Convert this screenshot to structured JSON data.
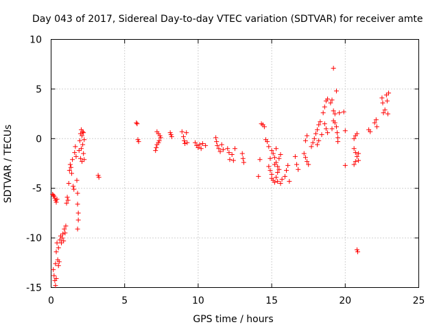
{
  "chart_data": {
    "type": "scatter",
    "title": "Day 043 of 2017, Sidereal Day-to-day VTEC variation (SDTVAR) for receiver amte",
    "xlabel": "GPS time / hours",
    "ylabel": "SDTVAR / TECUs",
    "xlim": [
      0,
      25
    ],
    "ylim": [
      -15,
      10
    ],
    "xticks": [
      0,
      5,
      10,
      15,
      20,
      25
    ],
    "yticks": [
      -15,
      -10,
      -5,
      0,
      5,
      10
    ],
    "xtick_labels": [
      "0",
      "5",
      "10",
      "15",
      "20",
      "25"
    ],
    "ytick_labels": [
      "-15",
      "-10",
      "-5",
      "0",
      "5",
      "10"
    ],
    "grid": true,
    "marker": "+",
    "color": "#ff0000",
    "series": [
      {
        "name": "SDTVAR",
        "points": [
          [
            0.1,
            -5.6
          ],
          [
            0.15,
            -5.7
          ],
          [
            0.2,
            -5.8
          ],
          [
            0.25,
            -6.0
          ],
          [
            0.3,
            -6.2
          ],
          [
            0.35,
            -6.4
          ],
          [
            0.4,
            -6.1
          ],
          [
            0.15,
            -13.2
          ],
          [
            0.2,
            -13.8
          ],
          [
            0.25,
            -14.3
          ],
          [
            0.3,
            -14.8
          ],
          [
            0.35,
            -14.1
          ],
          [
            0.3,
            -12.6
          ],
          [
            0.35,
            -11.4
          ],
          [
            0.4,
            -10.5
          ],
          [
            0.45,
            -12.2
          ],
          [
            0.5,
            -12.8
          ],
          [
            0.55,
            -12.4
          ],
          [
            0.5,
            -11.0
          ],
          [
            0.6,
            -10.2
          ],
          [
            0.65,
            -9.8
          ],
          [
            0.7,
            -10.5
          ],
          [
            0.75,
            -10.0
          ],
          [
            0.8,
            -9.6
          ],
          [
            0.85,
            -10.3
          ],
          [
            0.9,
            -9.1
          ],
          [
            0.95,
            -9.5
          ],
          [
            1.0,
            -8.8
          ],
          [
            1.05,
            -6.5
          ],
          [
            1.1,
            -5.9
          ],
          [
            1.15,
            -6.2
          ],
          [
            1.2,
            -4.5
          ],
          [
            1.25,
            -3.2
          ],
          [
            1.3,
            -2.6
          ],
          [
            1.35,
            -2.9
          ],
          [
            1.4,
            -3.5
          ],
          [
            1.45,
            -2.1
          ],
          [
            1.5,
            -4.8
          ],
          [
            1.55,
            -5.1
          ],
          [
            1.6,
            -1.4
          ],
          [
            1.65,
            -0.8
          ],
          [
            1.7,
            -1.8
          ],
          [
            1.75,
            -4.2
          ],
          [
            1.8,
            -5.5
          ],
          [
            1.8,
            -6.6
          ],
          [
            1.85,
            -7.5
          ],
          [
            1.85,
            -8.2
          ],
          [
            1.8,
            -9.1
          ],
          [
            1.9,
            -1.2
          ],
          [
            1.95,
            -0.2
          ],
          [
            2.0,
            0.5
          ],
          [
            2.05,
            0.9
          ],
          [
            2.1,
            0.3
          ],
          [
            2.15,
            -0.6
          ],
          [
            2.2,
            -1.5
          ],
          [
            2.1,
            -2.3
          ],
          [
            2.0,
            -2.0
          ],
          [
            2.2,
            0.6
          ],
          [
            2.25,
            -0.1
          ],
          [
            2.15,
            0.7
          ],
          [
            2.05,
            -1.0
          ],
          [
            2.25,
            -2.1
          ],
          [
            3.2,
            -3.7
          ],
          [
            3.25,
            -3.9
          ],
          [
            5.8,
            1.6
          ],
          [
            5.85,
            1.5
          ],
          [
            5.9,
            -0.1
          ],
          [
            5.95,
            -0.3
          ],
          [
            7.1,
            -1.2
          ],
          [
            7.15,
            -0.9
          ],
          [
            7.2,
            -0.6
          ],
          [
            7.3,
            -0.4
          ],
          [
            7.35,
            -0.2
          ],
          [
            7.2,
            0.7
          ],
          [
            7.3,
            0.5
          ],
          [
            7.4,
            0.3
          ],
          [
            7.45,
            0.1
          ],
          [
            8.1,
            0.6
          ],
          [
            8.15,
            0.4
          ],
          [
            8.2,
            0.2
          ],
          [
            8.9,
            0.7
          ],
          [
            9.0,
            0.2
          ],
          [
            9.05,
            -0.2
          ],
          [
            9.1,
            -0.5
          ],
          [
            9.2,
            0.6
          ],
          [
            9.25,
            -0.4
          ],
          [
            9.8,
            -0.4
          ],
          [
            9.9,
            -0.7
          ],
          [
            10.0,
            -0.9
          ],
          [
            10.1,
            -0.6
          ],
          [
            10.2,
            -1.0
          ],
          [
            10.3,
            -0.5
          ],
          [
            10.5,
            -0.7
          ],
          [
            11.2,
            0.1
          ],
          [
            11.25,
            -0.3
          ],
          [
            11.3,
            -0.7
          ],
          [
            11.4,
            -1.0
          ],
          [
            11.5,
            -1.3
          ],
          [
            11.6,
            -0.6
          ],
          [
            11.7,
            -1.1
          ],
          [
            12.0,
            -1.0
          ],
          [
            12.1,
            -1.4
          ],
          [
            12.15,
            -2.1
          ],
          [
            12.3,
            -1.6
          ],
          [
            12.4,
            -2.2
          ],
          [
            12.5,
            -1.0
          ],
          [
            13.0,
            -1.5
          ],
          [
            13.05,
            -2.0
          ],
          [
            13.1,
            -2.4
          ],
          [
            14.1,
            -3.8
          ],
          [
            14.2,
            -2.1
          ],
          [
            14.3,
            1.5
          ],
          [
            14.4,
            1.4
          ],
          [
            14.5,
            1.2
          ],
          [
            14.6,
            -0.1
          ],
          [
            14.7,
            -0.3
          ],
          [
            14.8,
            -0.8
          ],
          [
            14.8,
            -2.8
          ],
          [
            14.9,
            -3.2
          ],
          [
            15.0,
            -3.6
          ],
          [
            15.0,
            -1.2
          ],
          [
            15.1,
            -1.5
          ],
          [
            15.1,
            -4.2
          ],
          [
            15.2,
            -1.9
          ],
          [
            15.2,
            -4.4
          ],
          [
            15.3,
            -2.4
          ],
          [
            15.3,
            -3.9
          ],
          [
            15.4,
            -2.8
          ],
          [
            15.4,
            -3.4
          ],
          [
            15.5,
            -3.1
          ],
          [
            15.5,
            -2.0
          ],
          [
            15.6,
            -1.6
          ],
          [
            15.6,
            -4.5
          ],
          [
            15.7,
            -4.1
          ],
          [
            15.2,
            -2.6
          ],
          [
            14.9,
            -2.0
          ],
          [
            15.0,
            -4.0
          ],
          [
            15.4,
            -4.3
          ],
          [
            15.3,
            -1.0
          ],
          [
            15.9,
            -3.8
          ],
          [
            16.0,
            -3.2
          ],
          [
            16.1,
            -2.7
          ],
          [
            16.2,
            -4.3
          ],
          [
            16.6,
            -1.8
          ],
          [
            16.7,
            -2.6
          ],
          [
            16.8,
            -3.1
          ],
          [
            17.2,
            -1.5
          ],
          [
            17.3,
            -1.9
          ],
          [
            17.4,
            -2.3
          ],
          [
            17.5,
            -2.6
          ],
          [
            17.3,
            -0.2
          ],
          [
            17.4,
            0.3
          ],
          [
            17.7,
            -0.8
          ],
          [
            17.8,
            -0.4
          ],
          [
            17.9,
            0.0
          ],
          [
            18.0,
            0.5
          ],
          [
            18.1,
            0.9
          ],
          [
            18.2,
            1.4
          ],
          [
            18.3,
            1.7
          ],
          [
            18.1,
            -0.6
          ],
          [
            18.2,
            -0.2
          ],
          [
            18.4,
            0.4
          ],
          [
            18.5,
            2.6
          ],
          [
            18.6,
            3.2
          ],
          [
            18.7,
            3.8
          ],
          [
            18.8,
            4.0
          ],
          [
            18.6,
            1.5
          ],
          [
            18.7,
            1.0
          ],
          [
            18.8,
            0.6
          ],
          [
            19.0,
            3.6
          ],
          [
            19.1,
            3.9
          ],
          [
            19.2,
            2.8
          ],
          [
            19.3,
            2.5
          ],
          [
            19.4,
            4.8
          ],
          [
            19.3,
            1.6
          ],
          [
            19.4,
            1.2
          ],
          [
            19.45,
            0.6
          ],
          [
            19.5,
            0.1
          ],
          [
            19.5,
            -0.3
          ],
          [
            19.1,
            1.0
          ],
          [
            19.2,
            1.8
          ],
          [
            19.6,
            2.6
          ],
          [
            19.2,
            7.1
          ],
          [
            19.9,
            2.7
          ],
          [
            20.0,
            0.8
          ],
          [
            20.0,
            -2.7
          ],
          [
            20.6,
            0.0
          ],
          [
            20.7,
            0.3
          ],
          [
            20.8,
            0.5
          ],
          [
            20.6,
            -1.0
          ],
          [
            20.7,
            -1.4
          ],
          [
            20.8,
            -1.8
          ],
          [
            20.9,
            -2.2
          ],
          [
            20.6,
            -2.6
          ],
          [
            20.7,
            -2.3
          ],
          [
            20.9,
            -1.5
          ],
          [
            20.8,
            -11.2
          ],
          [
            20.85,
            -11.4
          ],
          [
            21.6,
            0.9
          ],
          [
            21.7,
            0.7
          ],
          [
            22.0,
            1.6
          ],
          [
            22.1,
            1.9
          ],
          [
            22.15,
            1.2
          ],
          [
            22.5,
            4.1
          ],
          [
            22.55,
            3.6
          ],
          [
            22.6,
            2.6
          ],
          [
            22.7,
            2.9
          ],
          [
            22.8,
            4.4
          ],
          [
            22.85,
            3.8
          ],
          [
            22.9,
            2.5
          ],
          [
            22.95,
            4.6
          ]
        ]
      }
    ]
  }
}
